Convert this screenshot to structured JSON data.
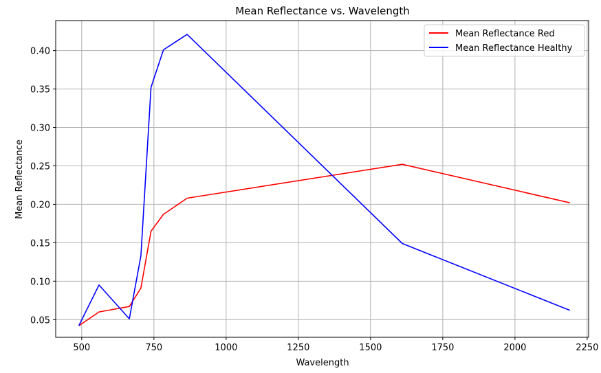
{
  "chart_data": {
    "type": "line",
    "title": "Mean Reflectance vs. Wavelength",
    "xlabel": "Wavelength",
    "ylabel": "Mean Reflectance",
    "xlim": [
      410,
      2255
    ],
    "ylim": [
      0.027,
      0.439
    ],
    "xticks": [
      500,
      750,
      1000,
      1250,
      1500,
      1750,
      2000,
      2250
    ],
    "yticks": [
      0.05,
      0.1,
      0.15,
      0.2,
      0.25,
      0.3,
      0.35,
      0.4
    ],
    "xtick_labels": [
      "500",
      "750",
      "1000",
      "1250",
      "1500",
      "1750",
      "2000",
      "2250"
    ],
    "ytick_labels": [
      "0.05",
      "0.10",
      "0.15",
      "0.20",
      "0.25",
      "0.30",
      "0.35",
      "0.40"
    ],
    "grid": true,
    "legend_position": "top-right",
    "x": [
      490,
      560,
      665,
      705,
      740,
      783,
      865,
      1610,
      2190
    ],
    "series": [
      {
        "name": "Mean Reflectance Red",
        "color": "#ff0000",
        "values": [
          0.042,
          0.06,
          0.067,
          0.091,
          0.165,
          0.187,
          0.208,
          0.252,
          0.202
        ]
      },
      {
        "name": "Mean Reflectance Healthy",
        "color": "#0000ff",
        "values": [
          0.042,
          0.095,
          0.051,
          0.133,
          0.352,
          0.401,
          0.421,
          0.149,
          0.062
        ]
      }
    ]
  }
}
